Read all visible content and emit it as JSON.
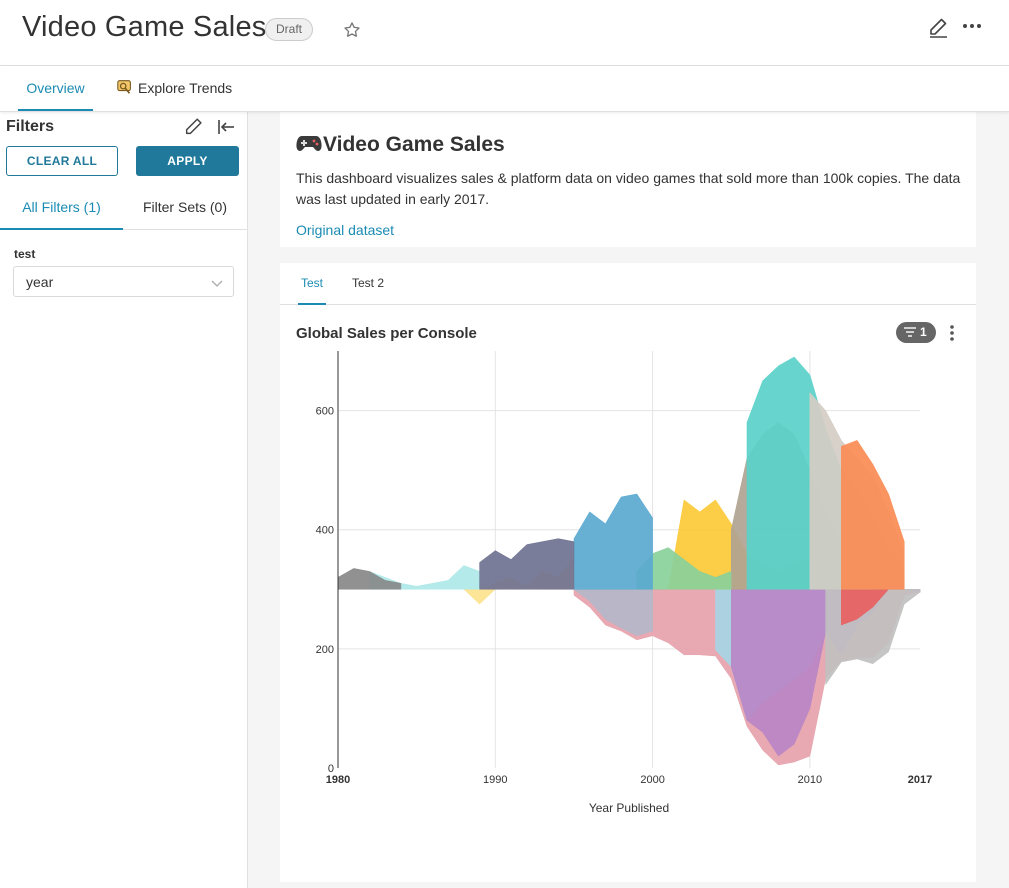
{
  "header": {
    "title": "Video Game Sales",
    "badge": "Draft",
    "icons": [
      "star-icon",
      "edit-icon",
      "more-icon"
    ]
  },
  "top_tabs": [
    {
      "label": "Overview",
      "active": true
    },
    {
      "label": "Explore Trends",
      "icon": "explore-icon",
      "active": false
    }
  ],
  "sidebar": {
    "title": "Filters",
    "clear_label": "CLEAR ALL",
    "apply_label": "APPLY",
    "tabs": [
      {
        "label": "All Filters (1)",
        "active": true
      },
      {
        "label": "Filter Sets (0)",
        "active": false
      }
    ],
    "filter": {
      "label": "test",
      "value": "year"
    }
  },
  "markdown": {
    "title": "Video Game Sales",
    "icon": "gamepad-icon",
    "description": "This dashboard visualizes sales & platform data on video games that sold more than 100k copies. The data was last updated in early 2017.",
    "link": "Original dataset"
  },
  "chart_tabs": [
    {
      "label": "Test",
      "active": true
    },
    {
      "label": "Test 2",
      "active": false
    }
  ],
  "chart_panel": {
    "title": "Global Sales per Console",
    "filter_count": "1"
  },
  "chart_data": {
    "type": "area",
    "style": "streamgraph",
    "title": "Global Sales per Console",
    "xlabel": "Year Published",
    "ylabel": "",
    "xlim": [
      1980,
      2017
    ],
    "ylim": [
      0,
      700
    ],
    "x_ticks": [
      "1980",
      "1990",
      "2000",
      "2010",
      "2017"
    ],
    "y_ticks": [
      "0",
      "200",
      "400",
      "600"
    ],
    "grid": true,
    "legend": "none",
    "series": [
      {
        "color": "#e6a2ad",
        "points": [
          [
            1995,
            290
          ],
          [
            1996,
            270
          ],
          [
            1997,
            240
          ],
          [
            1998,
            230
          ],
          [
            1999,
            215
          ],
          [
            2000,
            222
          ],
          [
            2001,
            210
          ],
          [
            2002,
            190
          ],
          [
            2003,
            190
          ],
          [
            2004,
            188
          ],
          [
            2005,
            150
          ],
          [
            2006,
            70
          ],
          [
            2007,
            30
          ],
          [
            2008,
            5
          ],
          [
            2009,
            10
          ],
          [
            2010,
            20
          ],
          [
            2011,
            150
          ],
          [
            2012,
            180
          ],
          [
            2013,
            185
          ],
          [
            2014,
            185
          ],
          [
            2015,
            210
          ],
          [
            2016,
            290
          ],
          [
            2017,
            295
          ]
        ]
      },
      {
        "color": "#b3b7c9",
        "points": [
          [
            1993,
            300
          ],
          [
            1994,
            300
          ],
          [
            1995,
            300
          ],
          [
            1996,
            280
          ],
          [
            1997,
            250
          ],
          [
            1998,
            235
          ],
          [
            1999,
            222
          ],
          [
            2000,
            230
          ]
        ]
      },
      {
        "color": "#a6d6e6",
        "points": [
          [
            2004,
            198
          ],
          [
            2005,
            170
          ],
          [
            2006,
            80
          ],
          [
            2007,
            110
          ],
          [
            2008,
            130
          ],
          [
            2009,
            148
          ],
          [
            2010,
            170
          ],
          [
            2011,
            228
          ],
          [
            2012,
            265
          ],
          [
            2013,
            285
          ],
          [
            2014,
            300
          ],
          [
            2015,
            300
          ],
          [
            2016,
            300
          ],
          [
            2017,
            295
          ]
        ]
      },
      {
        "color": "#b886c5",
        "points": [
          [
            2005,
            170
          ],
          [
            2006,
            80
          ],
          [
            2007,
            60
          ],
          [
            2008,
            20
          ],
          [
            2009,
            40
          ],
          [
            2010,
            100
          ],
          [
            2011,
            228
          ],
          [
            2012,
            190
          ],
          [
            2013,
            240
          ],
          [
            2014,
            260
          ],
          [
            2015,
            300
          ],
          [
            2016,
            300
          ],
          [
            2017,
            295
          ]
        ]
      },
      {
        "color": "#c0c0c0",
        "points": [
          [
            2011,
            140
          ],
          [
            2012,
            178
          ],
          [
            2013,
            183
          ],
          [
            2014,
            175
          ],
          [
            2015,
            195
          ],
          [
            2016,
            275
          ],
          [
            2017,
            295
          ]
        ]
      },
      {
        "color": "#e85f5f",
        "points": [
          [
            2012,
            240
          ],
          [
            2013,
            250
          ],
          [
            2014,
            270
          ],
          [
            2015,
            300
          ],
          [
            2016,
            300
          ]
        ]
      },
      {
        "color": "#fcc936",
        "points": [
          [
            2001,
            300
          ],
          [
            2002,
            450
          ],
          [
            2003,
            430
          ],
          [
            2004,
            450
          ],
          [
            2005,
            410
          ],
          [
            2006,
            360
          ],
          [
            2007,
            340
          ],
          [
            2008,
            330
          ],
          [
            2009,
            345
          ],
          [
            2010,
            350
          ],
          [
            2011,
            355
          ],
          [
            2012,
            350
          ],
          [
            2013,
            350
          ],
          [
            2014,
            350
          ]
        ]
      },
      {
        "color": "#b0a493",
        "points": [
          [
            2005,
            400
          ],
          [
            2006,
            520
          ],
          [
            2007,
            560
          ],
          [
            2008,
            580
          ],
          [
            2009,
            560
          ],
          [
            2010,
            500
          ],
          [
            2011,
            430
          ],
          [
            2012,
            380
          ],
          [
            2013,
            360
          ],
          [
            2014,
            350
          ],
          [
            2015,
            340
          ]
        ]
      },
      {
        "color": "#5ad1c9",
        "points": [
          [
            2006,
            580
          ],
          [
            2007,
            650
          ],
          [
            2008,
            675
          ],
          [
            2009,
            690
          ],
          [
            2010,
            660
          ],
          [
            2011,
            570
          ],
          [
            2012,
            500
          ],
          [
            2013,
            470
          ],
          [
            2014,
            420
          ],
          [
            2015,
            370
          ],
          [
            2016,
            330
          ]
        ]
      },
      {
        "color": "#d5cdc4",
        "points": [
          [
            2010,
            630
          ],
          [
            2011,
            600
          ],
          [
            2012,
            550
          ],
          [
            2013,
            520
          ],
          [
            2014,
            490
          ],
          [
            2015,
            430
          ],
          [
            2016,
            360
          ]
        ]
      },
      {
        "color": "#fa8c55",
        "points": [
          [
            2012,
            540
          ],
          [
            2013,
            550
          ],
          [
            2014,
            510
          ],
          [
            2015,
            460
          ],
          [
            2016,
            380
          ]
        ]
      },
      {
        "color": "#89d09a",
        "points": [
          [
            1999,
            330
          ],
          [
            2000,
            360
          ],
          [
            2001,
            370
          ],
          [
            2002,
            350
          ],
          [
            2003,
            330
          ],
          [
            2004,
            320
          ],
          [
            2005,
            330
          ]
        ]
      },
      {
        "color": "#fde38f",
        "points": [
          [
            1988,
            300
          ],
          [
            1989,
            275
          ],
          [
            1990,
            310
          ],
          [
            1991,
            320
          ],
          [
            1992,
            305
          ],
          [
            1993,
            330
          ],
          [
            1994,
            320
          ],
          [
            1995,
            355
          ]
        ]
      },
      {
        "color": "#aee9e8",
        "points": [
          [
            1982,
            330
          ],
          [
            1983,
            320
          ],
          [
            1984,
            310
          ],
          [
            1985,
            305
          ],
          [
            1986,
            310
          ],
          [
            1987,
            315
          ],
          [
            1988,
            340
          ],
          [
            1989,
            330
          ]
        ]
      },
      {
        "color": "#888888",
        "points": [
          [
            1980,
            320
          ],
          [
            1981,
            335
          ],
          [
            1982,
            330
          ],
          [
            1983,
            315
          ],
          [
            1984,
            310
          ]
        ]
      },
      {
        "color": "#5aa9cf",
        "points": [
          [
            1995,
            385
          ],
          [
            1996,
            430
          ],
          [
            1997,
            410
          ],
          [
            1998,
            455
          ],
          [
            1999,
            460
          ],
          [
            2000,
            420
          ]
        ]
      },
      {
        "color": "#6f7291",
        "points": [
          [
            1989,
            345
          ],
          [
            1990,
            365
          ],
          [
            1991,
            350
          ],
          [
            1992,
            375
          ],
          [
            1993,
            380
          ],
          [
            1994,
            385
          ],
          [
            1995,
            380
          ]
        ]
      }
    ]
  }
}
